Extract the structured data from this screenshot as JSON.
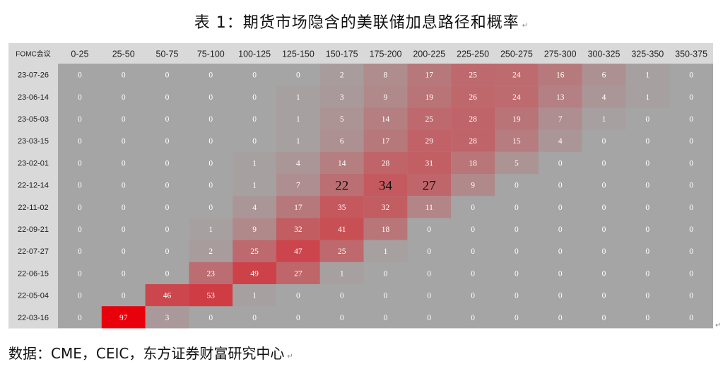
{
  "title": "表 1：期货市场隐含的美联储加息路径和概率",
  "source": "数据：CME，CEIC，东方证券财富研究中心",
  "chart_data": {
    "type": "heatmap",
    "corner_label": "FOMC会议",
    "columns": [
      "0-25",
      "25-50",
      "50-75",
      "75-100",
      "100-125",
      "125-150",
      "150-175",
      "175-200",
      "200-225",
      "225-250",
      "250-275",
      "275-300",
      "300-325",
      "325-350",
      "350-375"
    ],
    "rows": [
      "23-07-26",
      "23-06-14",
      "23-05-03",
      "23-03-15",
      "23-02-01",
      "22-12-14",
      "22-11-02",
      "22-09-21",
      "22-07-27",
      "22-06-15",
      "22-05-04",
      "22-03-16"
    ],
    "values": [
      [
        0,
        0,
        0,
        0,
        0,
        0,
        2,
        8,
        17,
        25,
        24,
        16,
        6,
        1,
        0
      ],
      [
        0,
        0,
        0,
        0,
        0,
        1,
        3,
        9,
        19,
        26,
        24,
        13,
        4,
        1,
        0
      ],
      [
        0,
        0,
        0,
        0,
        0,
        1,
        5,
        14,
        25,
        28,
        19,
        7,
        1,
        0,
        0
      ],
      [
        0,
        0,
        0,
        0,
        0,
        1,
        6,
        17,
        29,
        28,
        15,
        4,
        0,
        0,
        0
      ],
      [
        0,
        0,
        0,
        0,
        1,
        4,
        14,
        28,
        31,
        18,
        5,
        0,
        0,
        0,
        0
      ],
      [
        0,
        0,
        0,
        0,
        1,
        7,
        22,
        34,
        27,
        9,
        0,
        0,
        0,
        0,
        0
      ],
      [
        0,
        0,
        0,
        0,
        4,
        17,
        35,
        32,
        11,
        0,
        0,
        0,
        0,
        0,
        0
      ],
      [
        0,
        0,
        0,
        1,
        9,
        32,
        41,
        18,
        0,
        0,
        0,
        0,
        0,
        0,
        0
      ],
      [
        0,
        0,
        0,
        2,
        25,
        47,
        25,
        1,
        0,
        0,
        0,
        0,
        0,
        0,
        0
      ],
      [
        0,
        0,
        0,
        23,
        49,
        27,
        1,
        0,
        0,
        0,
        0,
        0,
        0,
        0,
        0
      ],
      [
        0,
        0,
        46,
        53,
        1,
        0,
        0,
        0,
        0,
        0,
        0,
        0,
        0,
        0,
        0
      ],
      [
        0,
        97,
        3,
        0,
        0,
        0,
        0,
        0,
        0,
        0,
        0,
        0,
        0,
        0,
        0
      ]
    ],
    "colors": {
      "background": "#a5a5a5",
      "header_background": "#d9d9d9",
      "high": "#e8000b",
      "value_text": "#ffffff",
      "label_text": "#222222"
    }
  }
}
